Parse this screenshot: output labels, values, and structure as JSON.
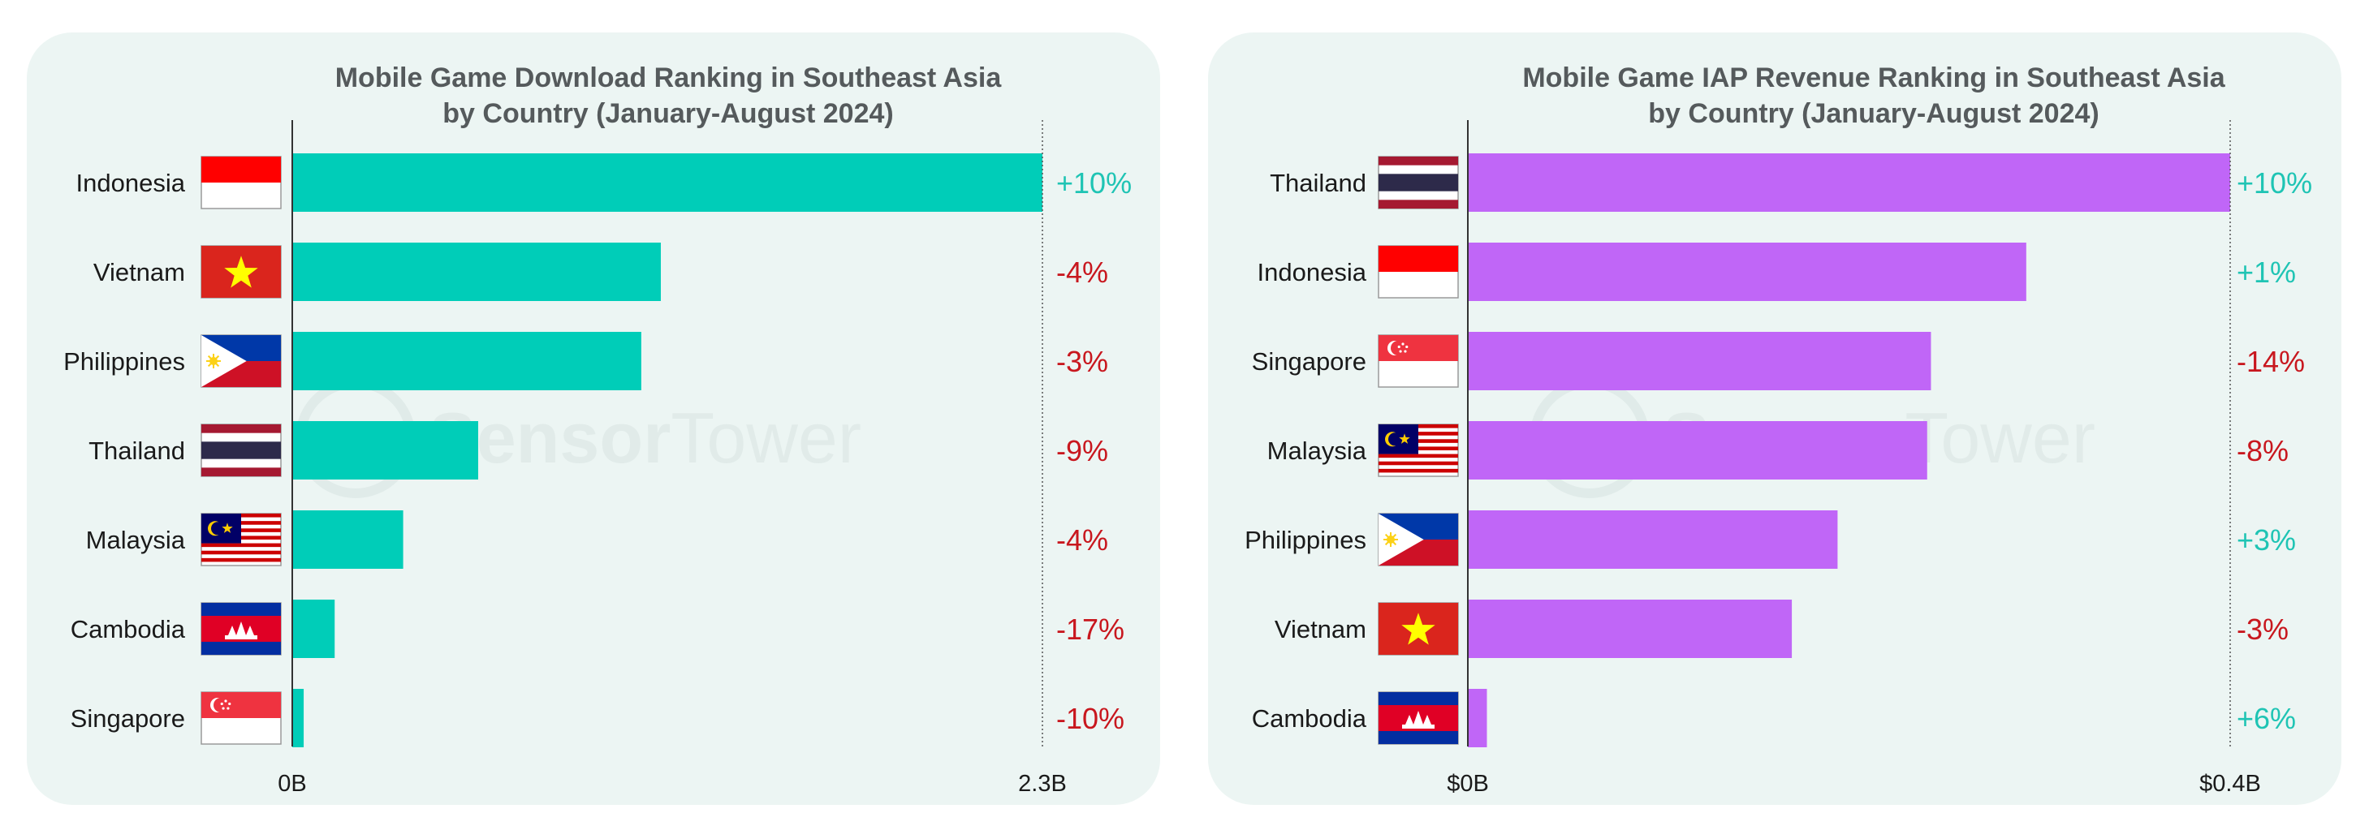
{
  "colors": {
    "panel_bg": "#ecf5f3",
    "positive": "#1fc4b4",
    "negative": "#c8171e",
    "axis": "#333333"
  },
  "watermark": {
    "brand_a": "Sensor",
    "brand_b": "Tower"
  },
  "chart_data": [
    {
      "type": "bar",
      "orientation": "horizontal",
      "title": [
        "Mobile Game Download Ranking in Southeast Asia",
        "by Country (January-August 2024)"
      ],
      "bar_color": "#00cdb8",
      "categories": [
        "Indonesia",
        "Vietnam",
        "Philippines",
        "Thailand",
        "Malaysia",
        "Cambodia",
        "Singapore"
      ],
      "flags": [
        "indonesia",
        "vietnam",
        "philippines",
        "thailand",
        "malaysia",
        "cambodia",
        "singapore"
      ],
      "values": [
        2.3,
        1.13,
        1.07,
        0.57,
        0.34,
        0.13,
        0.035
      ],
      "changes": [
        "+10%",
        "-4%",
        "-3%",
        "-9%",
        "-4%",
        "-17%",
        "-10%"
      ],
      "xlim": [
        0,
        2.3
      ],
      "x_tick_labels": [
        "0B",
        "2.3B"
      ],
      "unit": "B downloads"
    },
    {
      "type": "bar",
      "orientation": "horizontal",
      "title": [
        "Mobile Game IAP Revenue Ranking in Southeast Asia",
        "by Country (January-August 2024)"
      ],
      "bar_color": "#c066f7",
      "categories": [
        "Thailand",
        "Indonesia",
        "Singapore",
        "Malaysia",
        "Philippines",
        "Vietnam",
        "Cambodia"
      ],
      "flags": [
        "thailand",
        "indonesia",
        "singapore",
        "malaysia",
        "philippines",
        "vietnam",
        "cambodia"
      ],
      "values": [
        0.4,
        0.293,
        0.243,
        0.241,
        0.194,
        0.17,
        0.01
      ],
      "changes": [
        "+10%",
        "+1%",
        "-14%",
        "-8%",
        "+3%",
        "-3%",
        "+6%"
      ],
      "xlim": [
        0,
        0.4
      ],
      "x_tick_labels": [
        "$0B",
        "$0.4B"
      ],
      "unit": "$B revenue"
    }
  ]
}
